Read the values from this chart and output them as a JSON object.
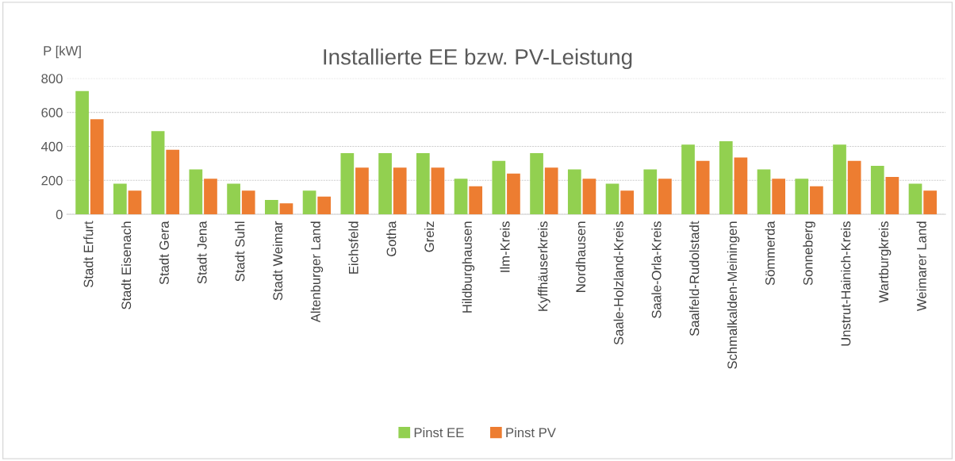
{
  "chart_data": {
    "type": "bar",
    "title": "Installierte EE bzw. PV-Leistung",
    "ylabel": "P [kW]",
    "categories": [
      "Stadt Erfurt",
      "Stadt Eisenach",
      "Stadt Gera",
      "Stadt Jena",
      "Stadt Suhl",
      "Stadt Weimar",
      "Altenburger Land",
      "Eichsfeld",
      "Gotha",
      "Greiz",
      "Hildburghausen",
      "Ilm-Kreis",
      "Kyffhäuserkreis",
      "Nordhausen",
      "Saale-Holzland-Kreis",
      "Saale-Orla-Kreis",
      "Saalfeld-Rudolstadt",
      "Schmalkalden-Meiningen",
      "Sömmerda",
      "Sonneberg",
      "Unstrut-Hainich-Kreis",
      "Wartburgkreis",
      "Weimarer Land"
    ],
    "series": [
      {
        "name": "Pinst EE",
        "color": "#92d050",
        "values": [
          725,
          180,
          490,
          265,
          180,
          85,
          140,
          360,
          360,
          360,
          210,
          315,
          360,
          265,
          180,
          265,
          410,
          430,
          265,
          210,
          410,
          285,
          180
        ]
      },
      {
        "name": "Pinst PV",
        "color": "#ed7d31",
        "values": [
          560,
          140,
          380,
          210,
          140,
          65,
          105,
          275,
          275,
          275,
          165,
          240,
          275,
          210,
          140,
          210,
          315,
          335,
          210,
          165,
          315,
          220,
          140
        ]
      }
    ],
    "ylim": [
      0,
      800
    ],
    "yticks": [
      0,
      200,
      400,
      600,
      800
    ],
    "grid": "y",
    "legend": "bottom"
  }
}
